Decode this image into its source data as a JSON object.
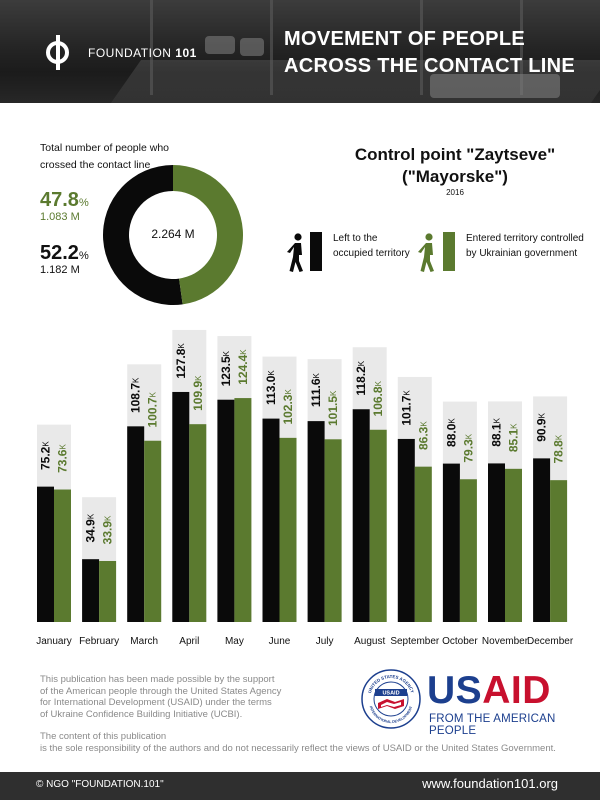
{
  "header": {
    "brand_prefix": "FOUNDATION",
    "brand_number": "101",
    "title_line1": "MOVEMENT OF PEOPLE",
    "title_line2": "ACROSS THE CONTACT LINE"
  },
  "summary": {
    "label": "Total number of people who crossed the contact line",
    "green_pct": "47.8",
    "green_count": "1.083 M",
    "black_pct": "52.2",
    "black_count": "1.182 M",
    "pct_sign": "%",
    "total": "2.264 M"
  },
  "control_point": {
    "title_line1": "Control point \"Zaytseve\"",
    "title_line2": "(\"Mayorske\")",
    "year": "2016"
  },
  "legend": {
    "left": "Left to the occupied territory",
    "entered": "Entered territory controlled by Ukrainian government"
  },
  "colors": {
    "black": "#0a0a0a",
    "green": "#5b7a2f",
    "label_bg": "#e9e9e9"
  },
  "chart_data": {
    "type": "bar",
    "categories": [
      "January",
      "February",
      "March",
      "April",
      "May",
      "June",
      "July",
      "August",
      "September",
      "October",
      "November",
      "December"
    ],
    "unit": "K",
    "series": [
      {
        "name": "Left to the occupied territory",
        "color": "#0a0a0a",
        "values": [
          75.2,
          34.9,
          108.7,
          127.8,
          123.5,
          113.0,
          111.6,
          118.2,
          101.7,
          88.0,
          88.1,
          90.9
        ]
      },
      {
        "name": "Entered territory controlled by Ukrainian government",
        "color": "#5b7a2f",
        "values": [
          73.6,
          33.9,
          100.7,
          109.9,
          124.4,
          102.3,
          101.5,
          106.8,
          86.3,
          79.3,
          85.1,
          78.8
        ]
      }
    ]
  },
  "disclaimer": {
    "p1_l1": "This publication has been made possible by the support",
    "p1_l2": "of the American people through the United States Agency",
    "p1_l3": "for International Development (USAID) under the terms",
    "p1_l4": "of Ukraine Confidence Building Initiative (UCBI).",
    "p2_l1": "The content of this publication",
    "p2_l2": "is the sole responsibility of the authors and do not necessarily reflect the views of USAID or the United States Government."
  },
  "usaid": {
    "word_us": "US",
    "word_aid": "AID",
    "tagline": "FROM THE AMERICAN PEOPLE",
    "seal_top": "UNITED STATES AGENCY",
    "seal_bottom": "INTERNATIONAL DEVELOPMENT",
    "seal_center": "USAID"
  },
  "footer": {
    "left": "© NGO \"FOUNDATION.101\"",
    "right": "www.foundation101.org"
  }
}
